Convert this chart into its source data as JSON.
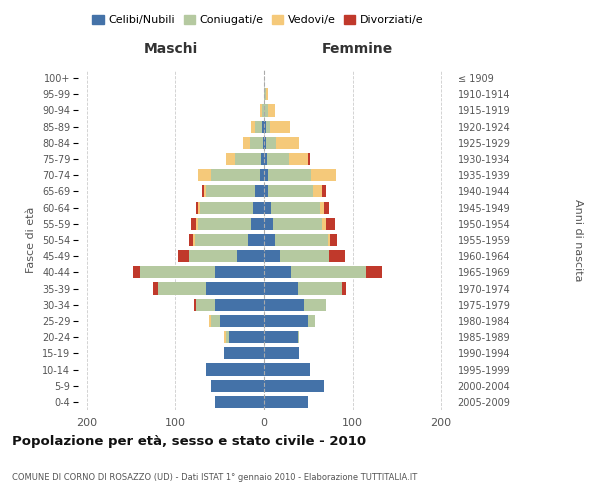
{
  "age_groups": [
    "100+",
    "95-99",
    "90-94",
    "85-89",
    "80-84",
    "75-79",
    "70-74",
    "65-69",
    "60-64",
    "55-59",
    "50-54",
    "45-49",
    "40-44",
    "35-39",
    "30-34",
    "25-29",
    "20-24",
    "15-19",
    "10-14",
    "5-9",
    "0-4"
  ],
  "birth_years": [
    "≤ 1909",
    "1910-1914",
    "1915-1919",
    "1920-1924",
    "1925-1929",
    "1930-1934",
    "1935-1939",
    "1940-1944",
    "1945-1949",
    "1950-1954",
    "1955-1959",
    "1960-1964",
    "1965-1969",
    "1970-1974",
    "1975-1979",
    "1980-1984",
    "1985-1989",
    "1990-1994",
    "1995-1999",
    "2000-2004",
    "2005-2009"
  ],
  "male": {
    "celibi": [
      0,
      0,
      0,
      2,
      1,
      3,
      5,
      10,
      12,
      15,
      18,
      30,
      55,
      65,
      55,
      50,
      40,
      45,
      65,
      60,
      55
    ],
    "coniugati": [
      0,
      0,
      2,
      8,
      15,
      30,
      55,
      55,
      60,
      60,
      60,
      55,
      85,
      55,
      22,
      10,
      3,
      0,
      0,
      0,
      0
    ],
    "vedovi": [
      0,
      0,
      2,
      5,
      8,
      10,
      15,
      3,
      2,
      2,
      2,
      0,
      0,
      0,
      0,
      2,
      2,
      0,
      0,
      0,
      0
    ],
    "divorziati": [
      0,
      0,
      0,
      0,
      0,
      0,
      0,
      2,
      3,
      5,
      5,
      12,
      8,
      5,
      2,
      0,
      0,
      0,
      0,
      0,
      0
    ]
  },
  "female": {
    "nubili": [
      0,
      0,
      0,
      2,
      2,
      3,
      5,
      5,
      8,
      10,
      12,
      18,
      30,
      38,
      45,
      50,
      38,
      40,
      52,
      68,
      50
    ],
    "coniugate": [
      0,
      2,
      4,
      5,
      12,
      25,
      48,
      50,
      55,
      55,
      60,
      55,
      85,
      50,
      25,
      8,
      2,
      0,
      0,
      0,
      0
    ],
    "vedove": [
      0,
      2,
      8,
      22,
      25,
      22,
      28,
      10,
      5,
      5,
      2,
      0,
      0,
      0,
      0,
      0,
      0,
      0,
      0,
      0,
      0
    ],
    "divorziate": [
      0,
      0,
      0,
      0,
      0,
      2,
      0,
      5,
      5,
      10,
      8,
      18,
      18,
      5,
      0,
      0,
      0,
      0,
      0,
      0,
      0
    ]
  },
  "colors": {
    "celibi": "#4472a8",
    "coniugati": "#b5c9a0",
    "vedovi": "#f5c97a",
    "divorziati": "#c0392b"
  },
  "xlim": 210,
  "title": "Popolazione per età, sesso e stato civile - 2010",
  "subtitle": "COMUNE DI CORNO DI ROSAZZO (UD) - Dati ISTAT 1° gennaio 2010 - Elaborazione TUTTITALIA.IT",
  "ylabel_left": "Fasce di età",
  "ylabel_right": "Anni di nascita",
  "legend_labels": [
    "Celibi/Nubili",
    "Coniugati/e",
    "Vedovi/e",
    "Divorziati/e"
  ]
}
